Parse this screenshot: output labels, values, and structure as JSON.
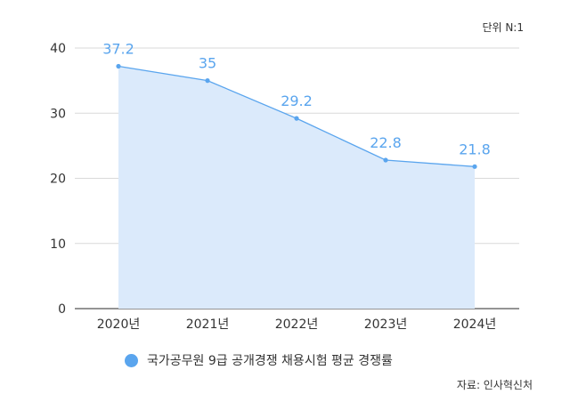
{
  "unit_label": "단위 N:1",
  "source": "자료: 인사혁신처",
  "colors": {
    "line": "#5aa5ee",
    "area": "#dbeafb",
    "label": "#5aa5ee",
    "grid": "#d9d9d9"
  },
  "chart_data": {
    "type": "area",
    "categories": [
      "2020년",
      "2021년",
      "2022년",
      "2023년",
      "2024년"
    ],
    "series": [
      {
        "name": "국가공무원 9급 공개경쟁 채용시험 평균 경쟁률",
        "values": [
          37.2,
          35,
          29.2,
          22.8,
          21.8
        ],
        "labels": [
          "37.2",
          "35",
          "29.2",
          "22.8",
          "21.8"
        ]
      }
    ],
    "yticks": [
      "0",
      "10",
      "20",
      "30",
      "40"
    ],
    "ylim": [
      0,
      40
    ],
    "grid": true,
    "legend_position": "bottom-left"
  }
}
